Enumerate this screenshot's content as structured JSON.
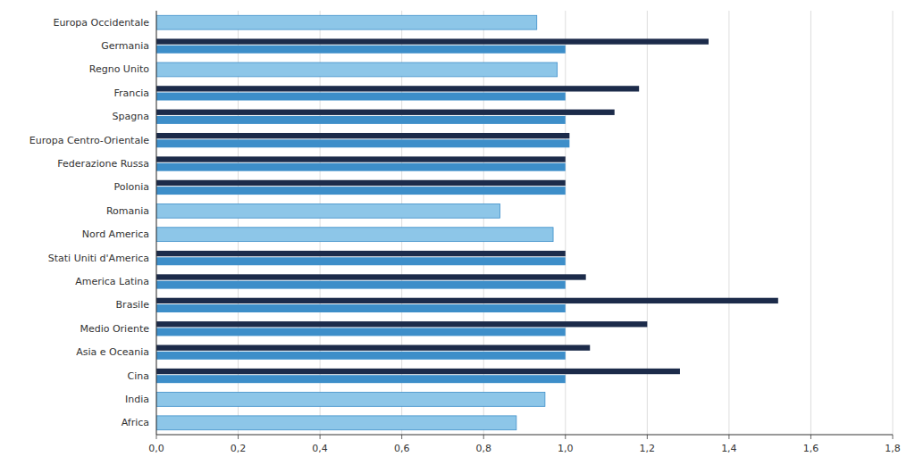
{
  "chart_data": {
    "type": "bar",
    "orientation": "horizontal",
    "grid": true,
    "categories": [
      "Europa Occidentale",
      "Germania",
      "Regno Unito",
      "Francia",
      "Spagna",
      "Europa Centro-Orientale",
      "Federazione Russa",
      "Polonia",
      "Romania",
      "Nord America",
      "Stati Uniti d'America",
      "America Latina",
      "Brasile",
      "Medio Oriente",
      "Asia e Oceania",
      "Cina",
      "India",
      "Africa"
    ],
    "series": [
      {
        "color": "#3d8ec9",
        "colors": [
          "#8dc6e8",
          "#3d8ec9",
          "#8dc6e8",
          "#3d8ec9",
          "#3d8ec9",
          "#3d8ec9",
          "#3d8ec9",
          "#3d8ec9",
          "#8dc6e8",
          "#8dc6e8",
          "#3d8ec9",
          "#3d8ec9",
          "#3d8ec9",
          "#3d8ec9",
          "#3d8ec9",
          "#3d8ec9",
          "#8dc6e8",
          "#8dc6e8"
        ],
        "values": [
          0.93,
          1.0,
          0.98,
          1.0,
          1.0,
          1.01,
          1.0,
          1.0,
          0.84,
          0.97,
          1.0,
          1.0,
          1.0,
          1.0,
          1.0,
          1.0,
          0.95,
          0.88
        ]
      },
      {
        "color": "#1c2b4a",
        "values": [
          0.0,
          1.35,
          0.0,
          1.18,
          1.12,
          1.01,
          1.0,
          1.0,
          0.0,
          0.0,
          1.0,
          1.05,
          1.52,
          1.2,
          1.06,
          1.28,
          0.0,
          0.0
        ]
      }
    ],
    "xlim": [
      0.0,
      1.8
    ],
    "xticks": [
      {
        "value": 0.0,
        "label": "0,0"
      },
      {
        "value": 0.2,
        "label": "0,2"
      },
      {
        "value": 0.4,
        "label": "0,4"
      },
      {
        "value": 0.6,
        "label": "0,6"
      },
      {
        "value": 0.8,
        "label": "0,8"
      },
      {
        "value": 1.0,
        "label": "1,0"
      },
      {
        "value": 1.2,
        "label": "1,2"
      },
      {
        "value": 1.4,
        "label": "1,4"
      },
      {
        "value": 1.6,
        "label": "1,6"
      },
      {
        "value": 1.8,
        "label": "1,8"
      }
    ]
  }
}
